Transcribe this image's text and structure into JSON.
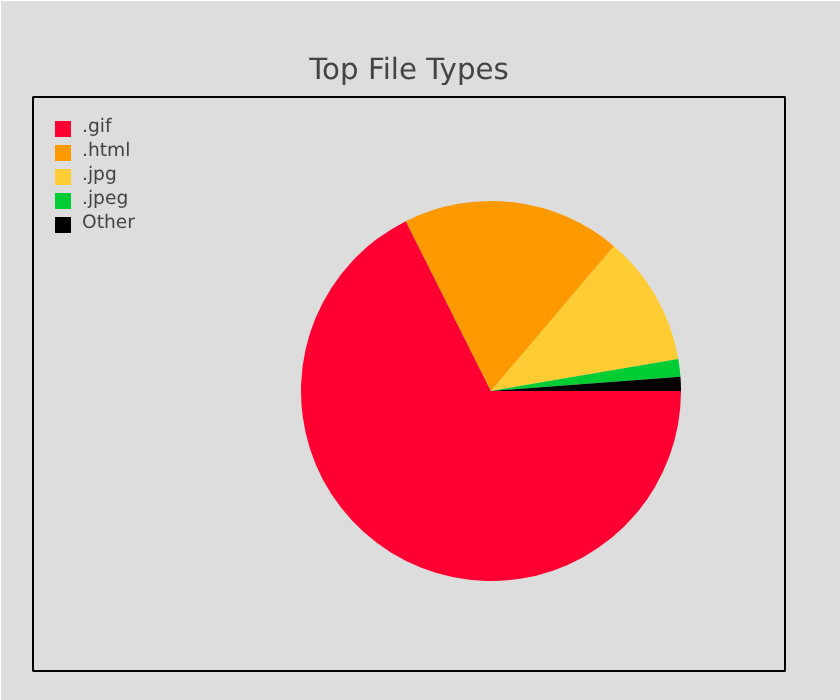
{
  "chart_data": {
    "type": "pie",
    "title": "Top File Types",
    "categories": [
      ".gif",
      ".html",
      ".jpg",
      ".jpeg",
      "Other"
    ],
    "values": [
      67.6,
      18.6,
      11.1,
      1.5,
      1.2
    ],
    "colors": [
      "#ff0033",
      "#ff9900",
      "#ffcc33",
      "#00cc33",
      "#000000"
    ],
    "legend": "top left"
  }
}
